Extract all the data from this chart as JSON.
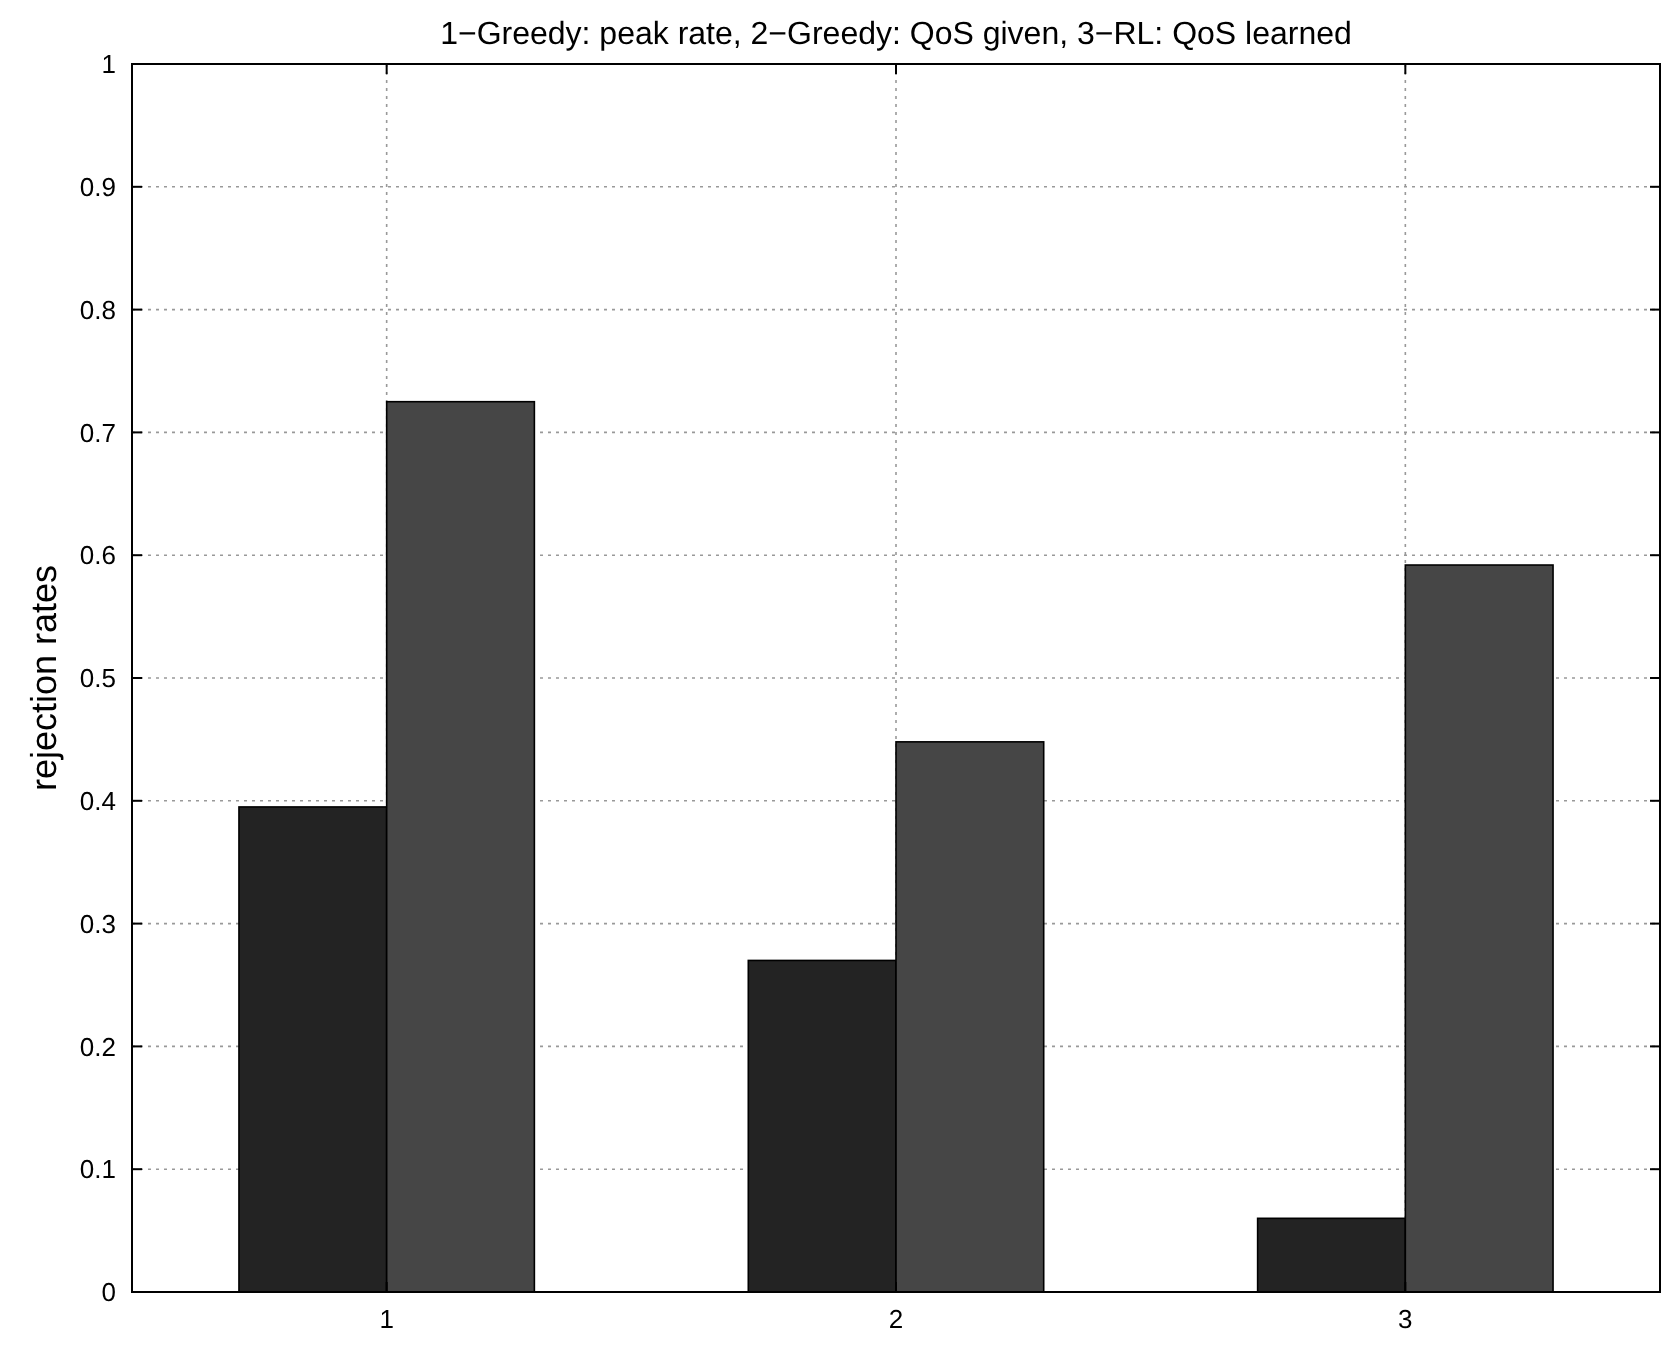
{
  "chart_data": {
    "type": "bar",
    "title": "1−Greedy: peak rate, 2−Greedy: QoS given, 3−RL: QoS learned",
    "ylabel": "rejection rates",
    "categories": [
      "1",
      "2",
      "3"
    ],
    "series": [
      {
        "color": "#232323",
        "values": [
          0.395,
          0.27,
          0.06
        ]
      },
      {
        "color": "#464646",
        "values": [
          0.725,
          0.448,
          0.592
        ]
      }
    ],
    "ylim": [
      0,
      1
    ],
    "yticks": [
      0,
      0.1,
      0.2,
      0.3,
      0.4,
      0.5,
      0.6,
      0.7,
      0.8,
      0.9,
      1
    ],
    "grid": true
  }
}
